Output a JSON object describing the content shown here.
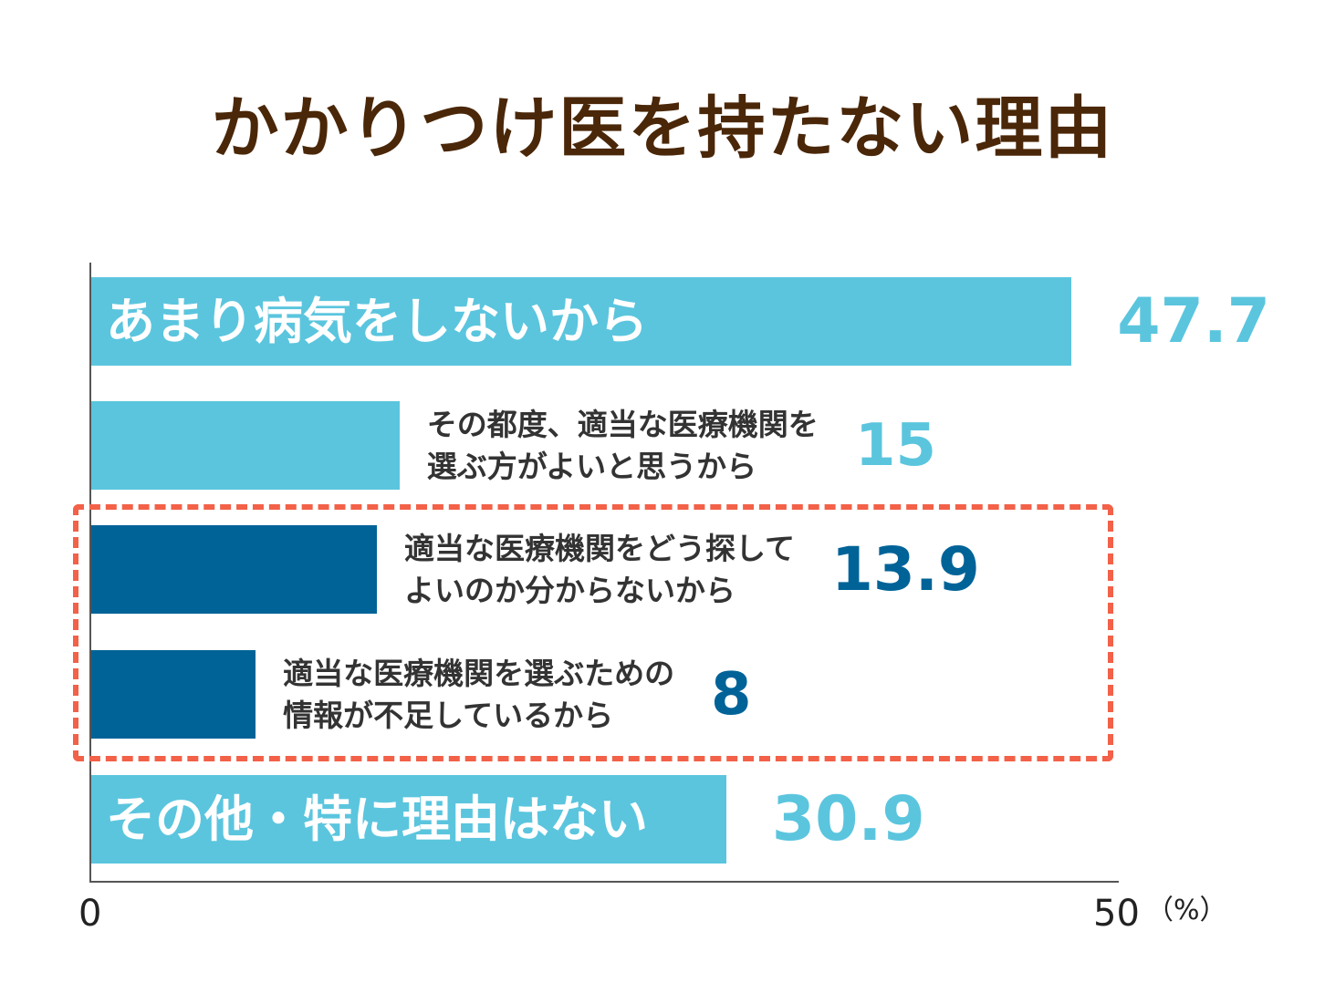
{
  "chart_data": {
    "type": "bar",
    "orientation": "horizontal",
    "title": "かかりつけ医を持たない理由",
    "unit": "（%）",
    "xlim": [
      0,
      50
    ],
    "ticks": [
      "0",
      "50"
    ],
    "grid": false,
    "categories": [
      "あまり病気をしないから",
      "その都度、適当な医療機関を\n選ぶ方がよいと思うから",
      "適当な医療機関をどう探して\nよいのか分からないから",
      "適当な医療機関を選ぶための\n情報が不足しているから",
      "その他・特に理由はない"
    ],
    "values": [
      47.7,
      15,
      13.9,
      8,
      30.9
    ],
    "value_labels": [
      "47.7",
      "15",
      "13.9",
      "8",
      "30.9"
    ],
    "highlighted_categories": [
      2,
      3
    ]
  },
  "colors": {
    "bar_light": "#5bc5de",
    "bar_dark": "#006398",
    "title": "#4a2708",
    "highlight_border": "#f26148"
  }
}
